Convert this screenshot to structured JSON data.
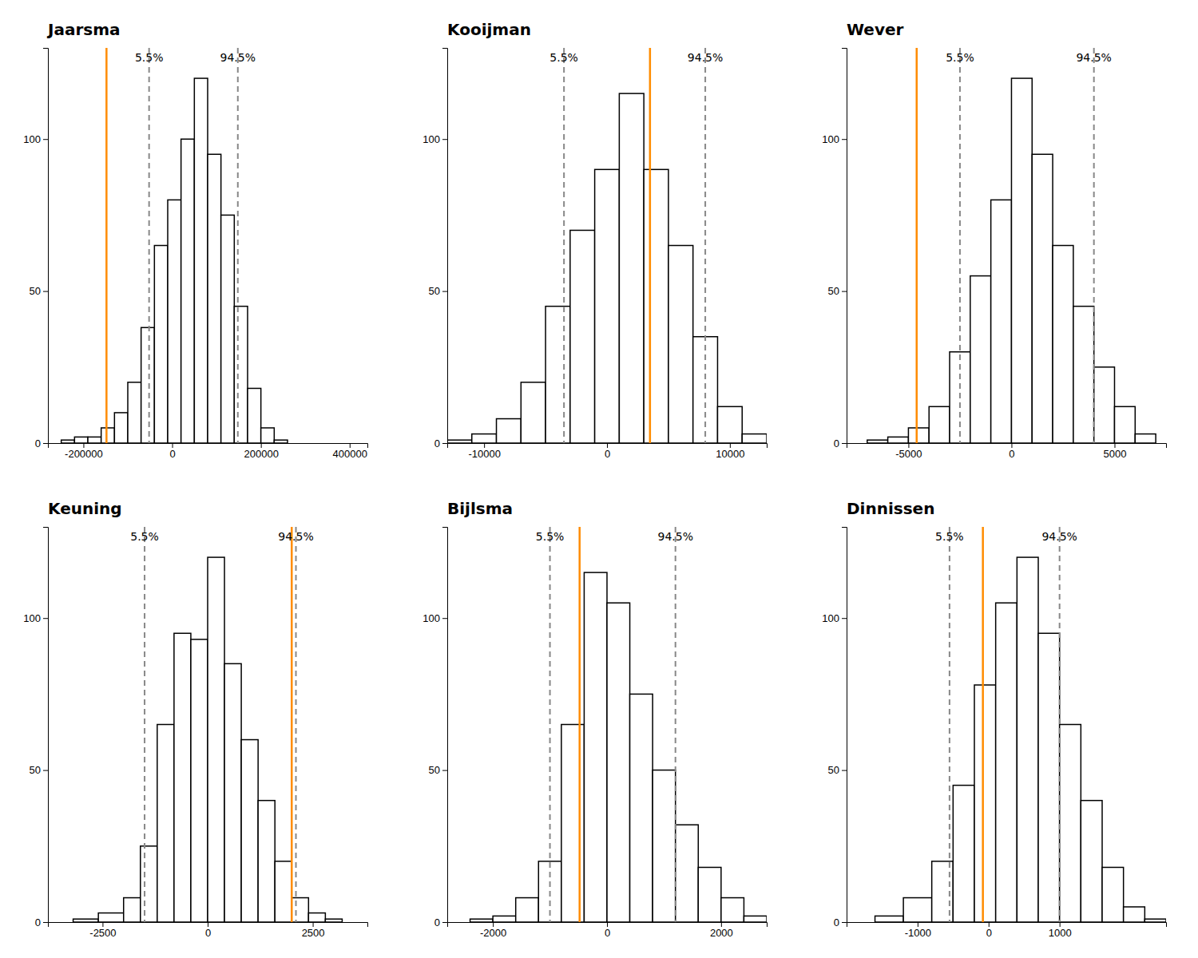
{
  "chart_data": [
    {
      "type": "histogram",
      "title": "Jaarsma",
      "bins": [
        -280000,
        -250000,
        -220000,
        -190000,
        -160000,
        -130000,
        -100000,
        -70000,
        -40000,
        -10000,
        20000,
        50000,
        80000,
        110000,
        140000,
        170000,
        200000,
        230000,
        260000
      ],
      "values": [
        0,
        1,
        2,
        2,
        5,
        10,
        20,
        38,
        65,
        80,
        100,
        120,
        95,
        75,
        45,
        18,
        5,
        1
      ],
      "color": "black",
      "xlim": [
        -280000,
        440000
      ],
      "xticks": [
        -200000,
        0,
        200000,
        400000
      ],
      "ylim": [
        0,
        130
      ],
      "yticks": [
        0,
        50,
        100
      ],
      "reference_lines": [
        {
          "x": -148000,
          "color": "#FF8C00",
          "line_style": "solid"
        },
        {
          "x": -52000,
          "color": "#888888",
          "line_style": "dashed",
          "label": "5.5%"
        },
        {
          "x": 148000,
          "color": "#888888",
          "line_style": "dashed",
          "label": "94.5%"
        }
      ]
    },
    {
      "type": "histogram",
      "title": "Kooijman",
      "bins": [
        -13000,
        -11000,
        -9000,
        -7000,
        -5000,
        -3000,
        -1000,
        1000,
        3000,
        5000,
        7000,
        9000,
        11000,
        13000
      ],
      "values": [
        1,
        3,
        8,
        20,
        45,
        70,
        90,
        115,
        90,
        65,
        35,
        12,
        3
      ],
      "color": "black",
      "xlim": [
        -13000,
        13000
      ],
      "xticks": [
        -10000,
        0,
        10000
      ],
      "ylim": [
        0,
        130
      ],
      "yticks": [
        0,
        50,
        100
      ],
      "reference_lines": [
        {
          "x": 3500,
          "color": "#FF8C00",
          "line_style": "solid"
        },
        {
          "x": -3500,
          "color": "#888888",
          "line_style": "dashed",
          "label": "5.5%"
        },
        {
          "x": 8000,
          "color": "#888888",
          "line_style": "dashed",
          "label": "94.5%"
        }
      ]
    },
    {
      "type": "histogram",
      "title": "Wever",
      "bins": [
        -8000,
        -7000,
        -6000,
        -5000,
        -4000,
        -3000,
        -2000,
        -1000,
        0,
        1000,
        2000,
        3000,
        4000,
        5000,
        6000,
        7000
      ],
      "values": [
        0,
        1,
        2,
        5,
        12,
        30,
        55,
        80,
        120,
        95,
        65,
        45,
        25,
        12,
        3
      ],
      "color": "black",
      "xlim": [
        -8000,
        7500
      ],
      "xticks": [
        -5000,
        0,
        5000
      ],
      "ylim": [
        0,
        130
      ],
      "yticks": [
        0,
        50,
        100
      ],
      "reference_lines": [
        {
          "x": -4600,
          "color": "#FF8C00",
          "line_style": "solid"
        },
        {
          "x": -2500,
          "color": "#888888",
          "line_style": "dashed",
          "label": "5.5%"
        },
        {
          "x": 4000,
          "color": "#888888",
          "line_style": "dashed",
          "label": "94.5%"
        }
      ]
    },
    {
      "type": "histogram",
      "title": "Keuning",
      "bins": [
        -3800,
        -3200,
        -2600,
        -2000,
        -1600,
        -1200,
        -800,
        -400,
        0,
        400,
        800,
        1200,
        1600,
        2000,
        2400,
        2800,
        3200,
        3600
      ],
      "values": [
        0,
        1,
        3,
        8,
        25,
        65,
        95,
        93,
        120,
        85,
        60,
        40,
        20,
        8,
        3,
        1,
        0
      ],
      "color": "black",
      "xlim": [
        -3800,
        3800
      ],
      "xticks": [
        -2500,
        0,
        2500
      ],
      "ylim": [
        0,
        130
      ],
      "yticks": [
        0,
        50,
        100
      ],
      "reference_lines": [
        {
          "x": 2000,
          "color": "#FF8C00",
          "line_style": "solid"
        },
        {
          "x": -1500,
          "color": "#888888",
          "line_style": "dashed",
          "label": "5.5%"
        },
        {
          "x": 2100,
          "color": "#888888",
          "line_style": "dashed",
          "label": "94.5%"
        }
      ]
    },
    {
      "type": "histogram",
      "title": "Bijlsma",
      "bins": [
        -2800,
        -2400,
        -2000,
        -1600,
        -1200,
        -800,
        -400,
        0,
        400,
        800,
        1200,
        1600,
        2000,
        2400,
        2800
      ],
      "values": [
        0,
        1,
        2,
        8,
        20,
        65,
        115,
        105,
        75,
        50,
        32,
        18,
        8,
        2
      ],
      "color": "black",
      "xlim": [
        -2800,
        2800
      ],
      "xticks": [
        -2000,
        0,
        2000
      ],
      "ylim": [
        0,
        130
      ],
      "yticks": [
        0,
        50,
        100
      ],
      "reference_lines": [
        {
          "x": -480,
          "color": "#FF8C00",
          "line_style": "solid"
        },
        {
          "x": -1000,
          "color": "#888888",
          "line_style": "dashed",
          "label": "5.5%"
        },
        {
          "x": 1200,
          "color": "#888888",
          "line_style": "dashed",
          "label": "94.5%"
        }
      ]
    },
    {
      "type": "histogram",
      "title": "Dinnissen",
      "bins": [
        -2000,
        -1600,
        -1200,
        -800,
        -500,
        -200,
        100,
        400,
        700,
        1000,
        1300,
        1600,
        1900,
        2200,
        2500
      ],
      "values": [
        0,
        2,
        8,
        20,
        45,
        78,
        105,
        120,
        95,
        65,
        40,
        18,
        5,
        1
      ],
      "color": "black",
      "xlim": [
        -2000,
        2500
      ],
      "xticks": [
        -1000,
        0,
        1000
      ],
      "ylim": [
        0,
        130
      ],
      "yticks": [
        0,
        50,
        100
      ],
      "reference_lines": [
        {
          "x": -80,
          "color": "#FF8C00",
          "line_style": "solid"
        },
        {
          "x": -550,
          "color": "#888888",
          "line_style": "dashed",
          "label": "5.5%"
        },
        {
          "x": 1000,
          "color": "#888888",
          "line_style": "dashed",
          "label": "94.5%"
        }
      ]
    }
  ]
}
